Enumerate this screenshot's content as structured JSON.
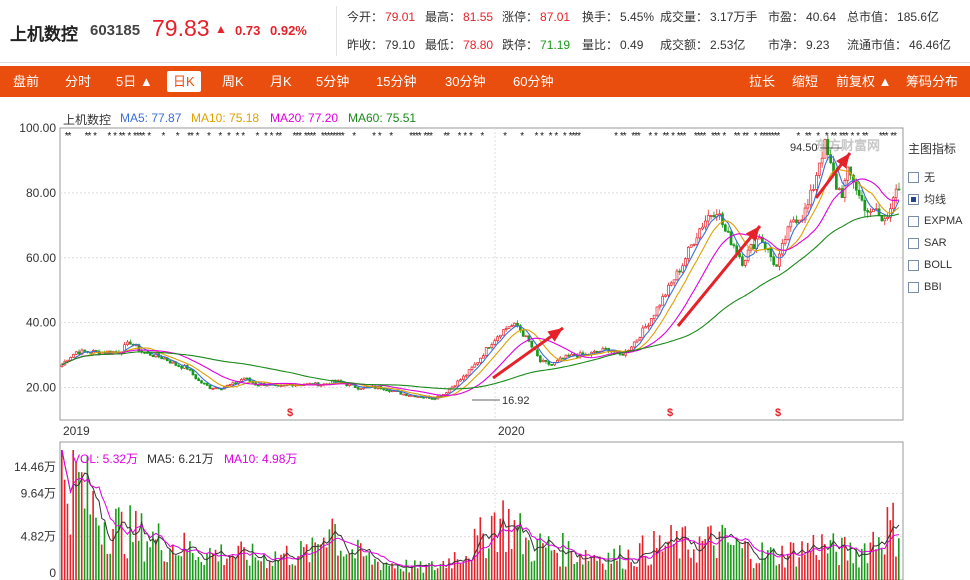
{
  "stock": {
    "name": "上机数控",
    "code": "603185",
    "price": "79.83",
    "change_arrow": "▲",
    "change": "0.73",
    "change_pct": "0.92%"
  },
  "quote_rows": [
    [
      {
        "label": "今开：",
        "value": "79.01",
        "color": "red"
      },
      {
        "label": "最高：",
        "value": "81.55",
        "color": "red"
      },
      {
        "label": "涨停：",
        "value": "87.01",
        "color": "red"
      },
      {
        "label": "换手：",
        "value": "5.45%",
        "color": "blk"
      },
      {
        "label": "成交量：",
        "value": "3.17万手",
        "color": "blk"
      },
      {
        "label": "市盈：",
        "value": "40.64",
        "color": "blk"
      },
      {
        "label": "总市值：",
        "value": "185.6亿",
        "color": "blk"
      }
    ],
    [
      {
        "label": "昨收：",
        "value": "79.10",
        "color": "blk"
      },
      {
        "label": "最低：",
        "value": "78.80",
        "color": "red"
      },
      {
        "label": "跌停：",
        "value": "71.19",
        "color": "green"
      },
      {
        "label": "量比：",
        "value": "0.49",
        "color": "blk"
      },
      {
        "label": "成交额：",
        "value": "2.53亿",
        "color": "blk"
      },
      {
        "label": "市净：",
        "value": "9.23",
        "color": "blk"
      },
      {
        "label": "流通市值：",
        "value": "46.46亿",
        "color": "blk"
      }
    ]
  ],
  "tabs_left": [
    "盘前",
    "分时",
    "5日 ▲",
    "日K",
    "周K",
    "月K",
    "5分钟",
    "15分钟",
    "30分钟",
    "60分钟"
  ],
  "active_tab": "日K",
  "tabs_right": [
    "拉长",
    "缩短",
    "前复权 ▲",
    "筹码分布"
  ],
  "ma_legend": [
    {
      "label": "上机数控",
      "color": "#333333"
    },
    {
      "label": "MA5: 77.87",
      "color": "#3b6fd6"
    },
    {
      "label": "MA10: 75.18",
      "color": "#e0a000"
    },
    {
      "label": "MA20: 77.20",
      "color": "#e000e0"
    },
    {
      "label": "MA60: 75.51",
      "color": "#1a8a1a"
    }
  ],
  "vol_legend": [
    {
      "label": "VOL: 5.32万",
      "color": "#e000e0"
    },
    {
      "label": "MA5: 6.21万",
      "color": "#333333"
    },
    {
      "label": "MA10: 4.98万",
      "color": "#e000e0"
    }
  ],
  "side_panel": {
    "title": "主图指标",
    "items": [
      {
        "label": "无",
        "checked": false
      },
      {
        "label": "均线",
        "checked": true
      },
      {
        "label": "EXPMA",
        "checked": false
      },
      {
        "label": "SAR",
        "checked": false
      },
      {
        "label": "BOLL",
        "checked": false
      },
      {
        "label": "BBI",
        "checked": false
      }
    ]
  },
  "watermark": "东方财富网",
  "chart_data": {
    "type": "candlestick",
    "price_axis": {
      "ticks": [
        "100.00",
        "80.00",
        "60.00",
        "40.00",
        "20.00"
      ],
      "range": [
        10,
        100
      ]
    },
    "volume_axis": {
      "ticks": [
        "14.46万",
        "9.64万",
        "4.82万",
        "0"
      ],
      "range": [
        0,
        14.46
      ]
    },
    "x_labels": [
      "2019",
      "2020"
    ],
    "annotations": {
      "high": "94.50",
      "low": "16.92"
    },
    "price_path": [
      [
        0,
        27
      ],
      [
        2,
        29
      ],
      [
        5,
        31
      ],
      [
        10,
        31
      ],
      [
        20,
        31
      ],
      [
        24,
        34
      ],
      [
        28,
        31
      ],
      [
        32,
        30
      ],
      [
        36,
        29
      ],
      [
        40,
        27
      ],
      [
        44,
        26
      ],
      [
        48,
        22
      ],
      [
        52,
        20
      ],
      [
        56,
        20
      ],
      [
        60,
        21
      ],
      [
        64,
        23
      ],
      [
        68,
        21
      ],
      [
        72,
        21
      ],
      [
        76,
        20
      ],
      [
        80,
        21
      ],
      [
        84,
        21
      ],
      [
        88,
        21
      ],
      [
        92,
        21
      ],
      [
        96,
        22
      ],
      [
        100,
        21
      ],
      [
        104,
        20
      ],
      [
        108,
        20
      ],
      [
        112,
        20
      ],
      [
        116,
        19
      ],
      [
        120,
        18
      ],
      [
        124,
        17.5
      ],
      [
        128,
        17
      ],
      [
        131,
        16.9
      ],
      [
        134,
        18
      ],
      [
        138,
        21
      ],
      [
        142,
        24
      ],
      [
        146,
        28
      ],
      [
        150,
        33
      ],
      [
        154,
        37
      ],
      [
        157,
        39
      ],
      [
        160,
        39
      ],
      [
        164,
        34
      ],
      [
        168,
        28
      ],
      [
        172,
        27
      ],
      [
        176,
        29
      ],
      [
        180,
        30
      ],
      [
        184,
        30
      ],
      [
        188,
        31
      ],
      [
        192,
        32
      ],
      [
        196,
        30
      ],
      [
        198,
        31
      ],
      [
        202,
        35
      ],
      [
        206,
        40
      ],
      [
        210,
        46
      ],
      [
        214,
        52
      ],
      [
        218,
        58
      ],
      [
        220,
        62
      ],
      [
        224,
        69
      ],
      [
        227,
        73
      ],
      [
        230,
        75
      ],
      [
        233,
        68
      ],
      [
        236,
        64
      ],
      [
        239,
        59
      ],
      [
        242,
        63
      ],
      [
        245,
        67
      ],
      [
        248,
        62
      ],
      [
        251,
        57
      ],
      [
        254,
        66
      ],
      [
        257,
        72
      ],
      [
        260,
        73
      ],
      [
        262,
        76
      ],
      [
        264,
        82
      ],
      [
        266,
        90
      ],
      [
        268,
        94.5
      ],
      [
        270,
        88
      ],
      [
        272,
        82
      ],
      [
        274,
        80
      ],
      [
        276,
        86
      ],
      [
        278,
        84
      ],
      [
        280,
        79
      ],
      [
        282,
        76
      ],
      [
        284,
        73
      ],
      [
        286,
        75
      ],
      [
        288,
        71
      ],
      [
        290,
        74
      ],
      [
        292,
        79
      ],
      [
        294,
        80
      ]
    ],
    "volume_profile": [
      [
        0,
        13
      ],
      [
        6,
        11
      ],
      [
        12,
        8
      ],
      [
        20,
        6
      ],
      [
        30,
        5
      ],
      [
        40,
        4
      ],
      [
        50,
        3.2
      ],
      [
        60,
        3
      ],
      [
        70,
        2.6
      ],
      [
        80,
        3
      ],
      [
        88,
        3.2
      ],
      [
        92,
        5.5
      ],
      [
        94,
        8
      ],
      [
        98,
        4
      ],
      [
        104,
        3
      ],
      [
        110,
        2.2
      ],
      [
        118,
        1.8
      ],
      [
        126,
        1.4
      ],
      [
        132,
        1.6
      ],
      [
        138,
        2.8
      ],
      [
        146,
        4.2
      ],
      [
        152,
        7.2
      ],
      [
        158,
        6.5
      ],
      [
        164,
        4
      ],
      [
        172,
        3.8
      ],
      [
        180,
        3.2
      ],
      [
        190,
        2.8
      ],
      [
        198,
        2.7
      ],
      [
        206,
        3.6
      ],
      [
        214,
        4.2
      ],
      [
        222,
        4
      ],
      [
        230,
        4.6
      ],
      [
        240,
        3.5
      ],
      [
        250,
        2.8
      ],
      [
        260,
        3.5
      ],
      [
        266,
        4.2
      ],
      [
        272,
        3.4
      ],
      [
        280,
        3.2
      ],
      [
        286,
        5
      ],
      [
        290,
        6.2
      ],
      [
        294,
        6
      ]
    ]
  }
}
